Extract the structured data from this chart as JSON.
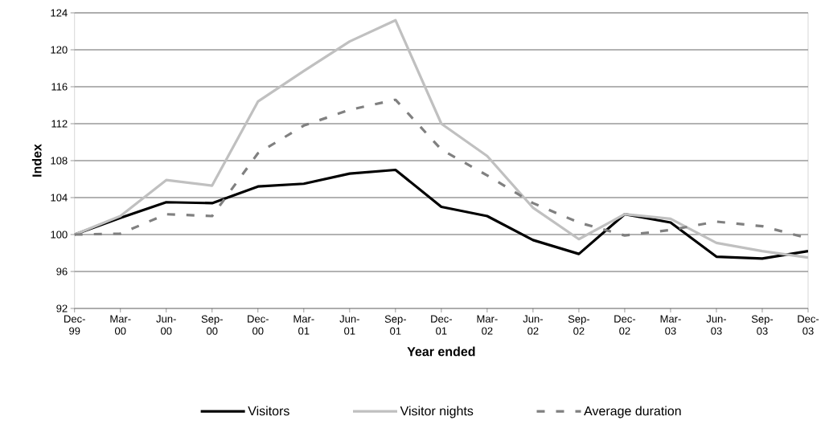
{
  "chart_data": {
    "type": "line",
    "xlabel": "Year ended",
    "ylabel": "Index",
    "categories": [
      "Dec-99",
      "Mar-00",
      "Jun-00",
      "Sep-00",
      "Dec-00",
      "Mar-01",
      "Jun-01",
      "Sep-01",
      "Dec-01",
      "Mar-02",
      "Jun-02",
      "Sep-02",
      "Dec-02",
      "Mar-03",
      "Jun-03",
      "Sep-03",
      "Dec-03"
    ],
    "series": [
      {
        "name": "Visitors",
        "color": "#000000",
        "line_style": "solid",
        "values": [
          100,
          101.8,
          103.5,
          103.4,
          105.2,
          105.5,
          106.6,
          107.0,
          103.0,
          102.0,
          99.4,
          97.9,
          102.2,
          101.3,
          97.6,
          97.4,
          98.2
        ]
      },
      {
        "name": "Visitor nights",
        "color": "#c0c0c0",
        "line_style": "solid",
        "values": [
          100,
          102.0,
          105.9,
          105.3,
          114.4,
          117.7,
          120.9,
          123.2,
          112.0,
          108.5,
          102.9,
          99.5,
          102.2,
          101.7,
          99.1,
          98.2,
          97.5
        ]
      },
      {
        "name": "Average duration",
        "color": "#808080",
        "line_style": "dashed",
        "values": [
          100,
          100.1,
          102.2,
          102.0,
          108.8,
          111.8,
          113.5,
          114.6,
          109.2,
          106.4,
          103.4,
          101.3,
          99.9,
          100.5,
          101.4,
          100.9,
          99.6
        ]
      }
    ],
    "ylim": [
      92,
      124
    ],
    "yticks": [
      92,
      96,
      100,
      104,
      108,
      112,
      116,
      120,
      124
    ],
    "grid": "y",
    "legend": "bottom",
    "marker": "none"
  }
}
